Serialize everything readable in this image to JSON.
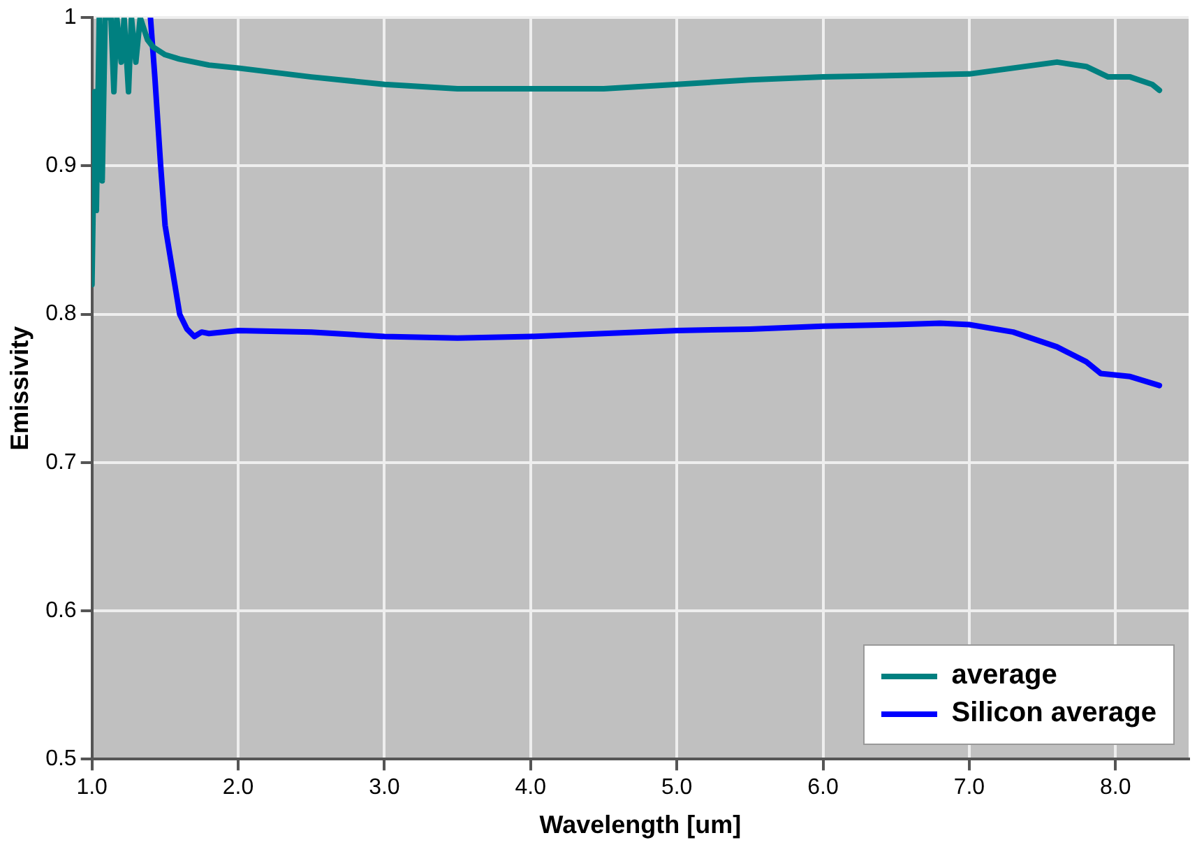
{
  "chart_data": {
    "type": "line",
    "xlabel": "Wavelength [um]",
    "ylabel": "Emissivity",
    "xlim": [
      1.0,
      8.5
    ],
    "xticks": [
      {
        "value": 1,
        "label": "1.0"
      },
      {
        "value": 2,
        "label": "2.0"
      },
      {
        "value": 3,
        "label": "3.0"
      },
      {
        "value": 4,
        "label": "4.0"
      },
      {
        "value": 5,
        "label": "5.0"
      },
      {
        "value": 6,
        "label": "6.0"
      },
      {
        "value": 7,
        "label": "7.0"
      },
      {
        "value": 8,
        "label": "8.0"
      }
    ],
    "ylim": [
      0.5,
      1.0
    ],
    "yticks": [
      0.5,
      0.6,
      0.7,
      0.8,
      0.9,
      1
    ],
    "grid": true,
    "legend": "bottom right",
    "marker": "none",
    "line_style": "solid",
    "series": [
      {
        "name": "average",
        "color": "#008080",
        "x": [
          1.0,
          1.02,
          1.03,
          1.05,
          1.07,
          1.09,
          1.13,
          1.15,
          1.17,
          1.2,
          1.22,
          1.25,
          1.27,
          1.3,
          1.33,
          1.38,
          1.42,
          1.5,
          1.6,
          1.8,
          2.0,
          2.5,
          3.0,
          3.5,
          4.0,
          4.5,
          5.0,
          5.5,
          6.0,
          6.5,
          7.0,
          7.3,
          7.6,
          7.8,
          7.95,
          8.1,
          8.25,
          8.3
        ],
        "values": [
          0.82,
          0.95,
          0.87,
          1.0,
          0.89,
          1.0,
          1.0,
          0.95,
          1.0,
          0.97,
          1.0,
          0.95,
          1.0,
          0.97,
          1.0,
          0.985,
          0.98,
          0.975,
          0.972,
          0.968,
          0.966,
          0.96,
          0.955,
          0.952,
          0.952,
          0.952,
          0.955,
          0.958,
          0.96,
          0.961,
          0.962,
          0.966,
          0.97,
          0.967,
          0.96,
          0.96,
          0.955,
          0.951
        ]
      },
      {
        "name": "Silicon average",
        "color": "#0000ff",
        "x": [
          1.4,
          1.43,
          1.47,
          1.5,
          1.55,
          1.6,
          1.65,
          1.7,
          1.75,
          1.8,
          2.0,
          2.5,
          3.0,
          3.5,
          4.0,
          4.5,
          5.0,
          5.5,
          6.0,
          6.5,
          6.8,
          7.0,
          7.3,
          7.6,
          7.8,
          7.9,
          8.1,
          8.3
        ],
        "values": [
          1.0,
          0.96,
          0.9,
          0.86,
          0.83,
          0.8,
          0.79,
          0.785,
          0.788,
          0.787,
          0.789,
          0.788,
          0.785,
          0.784,
          0.785,
          0.787,
          0.789,
          0.79,
          0.792,
          0.793,
          0.794,
          0.793,
          0.788,
          0.778,
          0.768,
          0.76,
          0.758,
          0.752
        ]
      }
    ]
  }
}
